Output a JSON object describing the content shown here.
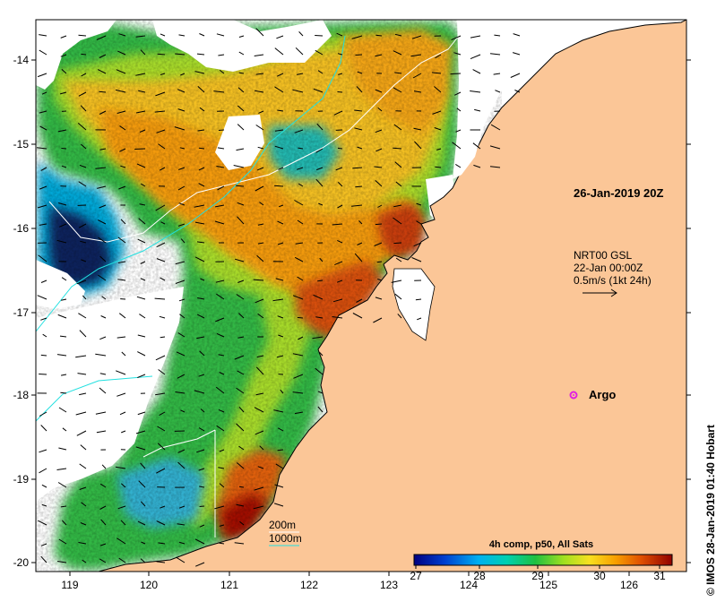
{
  "map": {
    "x_ticks": [
      "119",
      "120",
      "121",
      "122",
      "123",
      "124",
      "125",
      "126"
    ],
    "y_ticks": [
      "-14",
      "-15",
      "-16",
      "-17",
      "-18",
      "-19",
      "-20"
    ],
    "sst_range": [
      27,
      31.5
    ]
  },
  "annotations": {
    "timestamp": "26-Jan-2019 20Z",
    "currents_source": "NRT00 GSL",
    "currents_time": "22-Jan 00:00Z",
    "vector_scale": "0.5m/s (1kt 24h)",
    "argo_label": "Argo"
  },
  "legend": {
    "isobath_200": "200m",
    "isobath_1000": "1000m"
  },
  "colorbar": {
    "title": "4h comp, p50, All Sats",
    "ticks": [
      "27",
      "28",
      "29",
      "30",
      "31"
    ]
  },
  "credit": "© IMOS 28-Jan-2019 01:40 Hobart",
  "colors": {
    "land": "#fbc697",
    "cloud": "#ffffff",
    "isobath_200": "#ffffff",
    "isobath_1000": "#22e0e0",
    "argo": "#e020e0"
  }
}
